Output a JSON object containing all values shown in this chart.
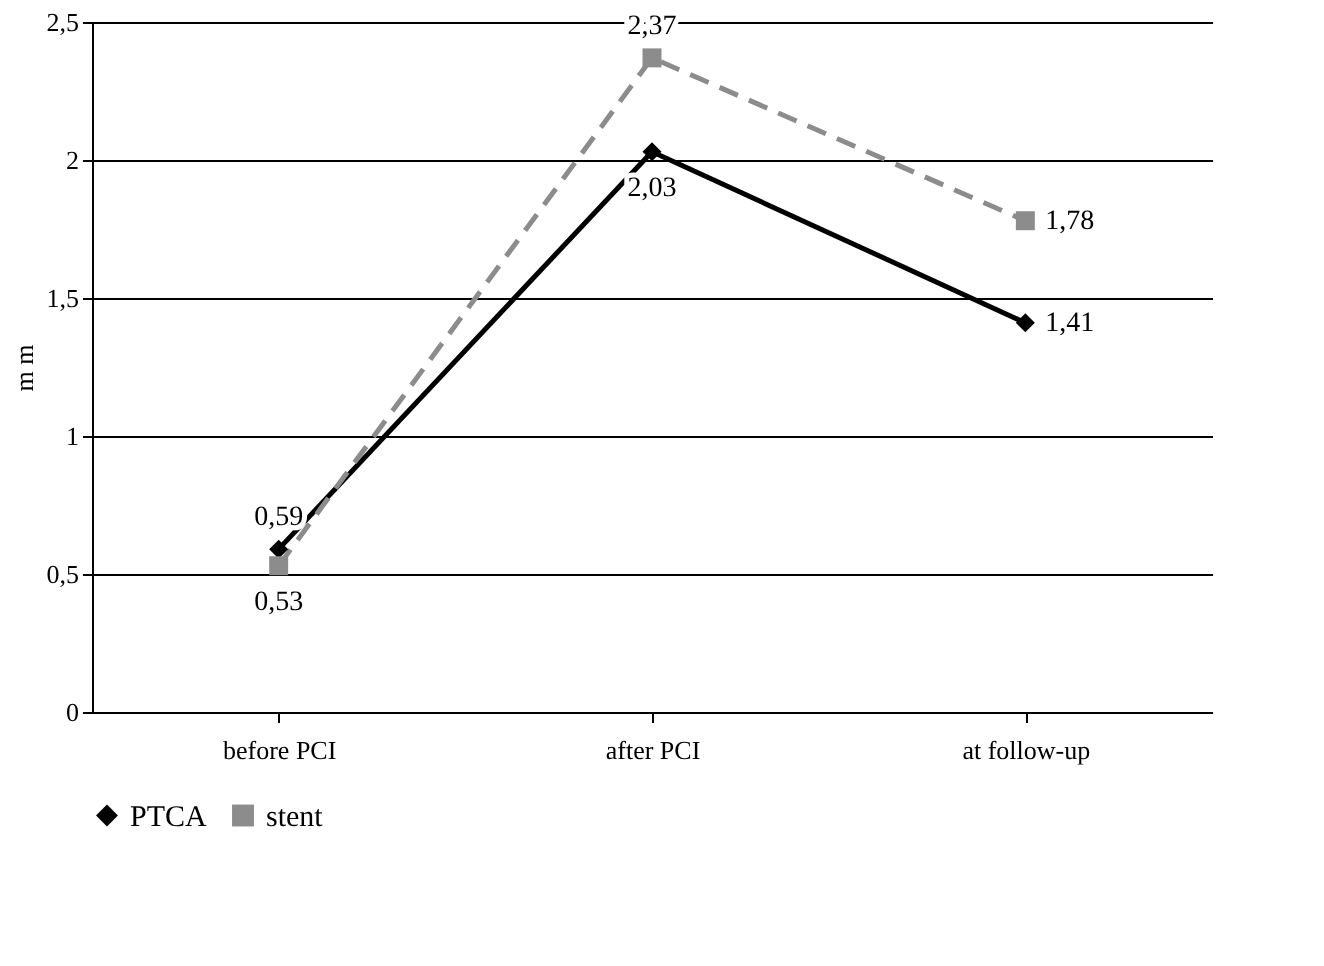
{
  "chart_data": {
    "type": "line",
    "ylabel": "m m",
    "categories": [
      "before PCI",
      "after PCI",
      "at follow-up"
    ],
    "series": [
      {
        "name": "PTCA",
        "color": "#000000",
        "values": [
          0.59,
          2.03,
          1.41
        ],
        "value_labels": [
          "0,59",
          "2,03",
          "1,41"
        ],
        "marker": "diamond",
        "line_style": "solid"
      },
      {
        "name": "stent",
        "color": "#8c8c8c",
        "values": [
          0.53,
          2.37,
          1.78
        ],
        "value_labels": [
          "0,53",
          "2,37",
          "1,78"
        ],
        "marker": "square",
        "line_style": "dashed"
      }
    ],
    "ylim": [
      0,
      2.5
    ],
    "yticks": [
      0,
      {
        "value": 0.5,
        "label": "0,5"
      },
      1,
      {
        "value": 1.5,
        "label": "1,5"
      },
      2,
      {
        "value": 2.5,
        "label": "2,5"
      }
    ],
    "grid": "y",
    "legend": "bottom"
  }
}
